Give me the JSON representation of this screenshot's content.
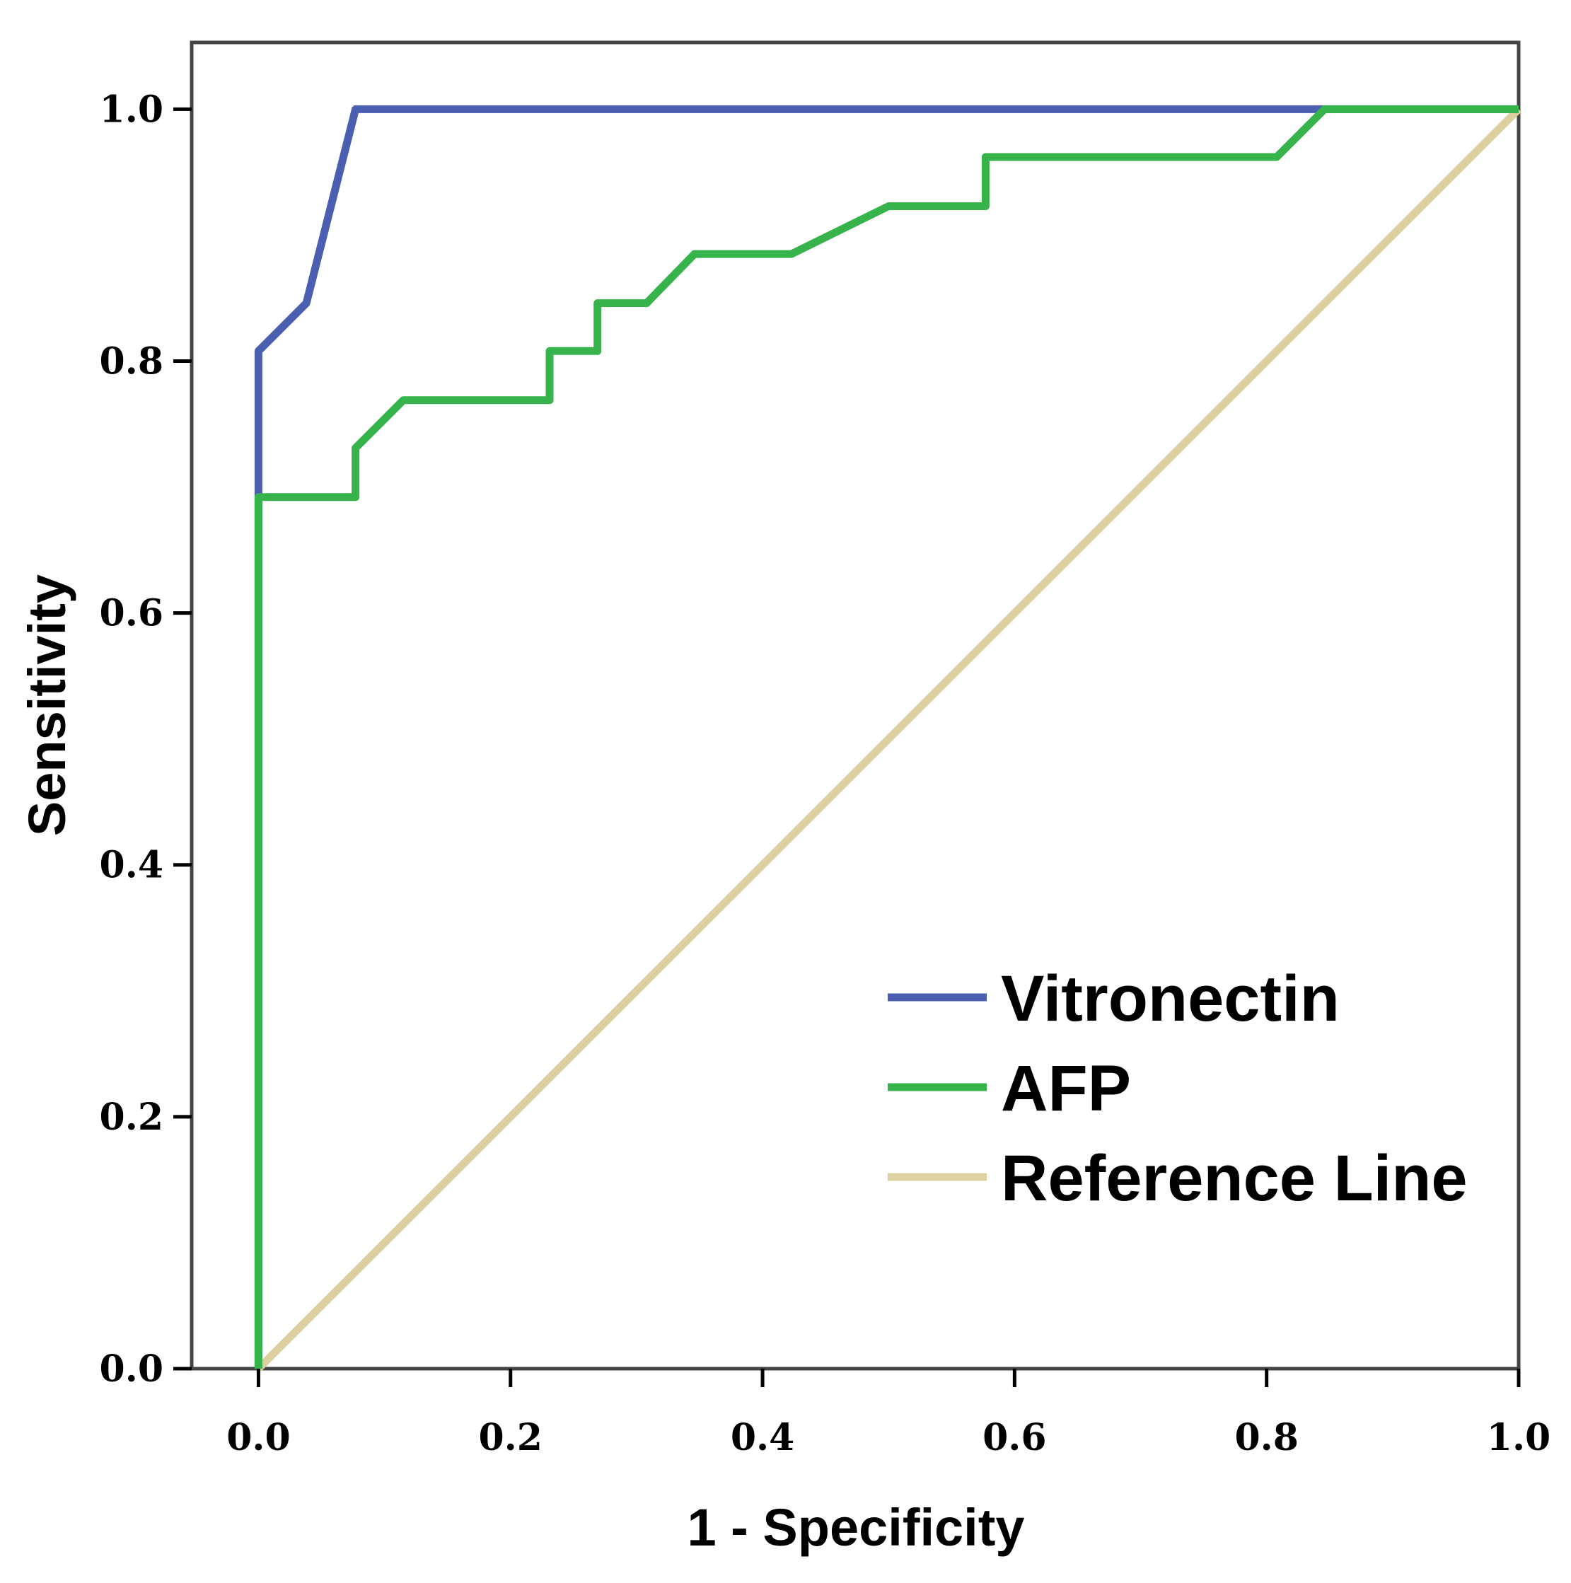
{
  "chart_data": {
    "type": "line",
    "title": "",
    "xlabel": "1 - Specificity",
    "ylabel": "Sensitivity",
    "xlim": [
      -0.053,
      1.0
    ],
    "ylim": [
      0.0,
      1.053
    ],
    "xticks": [
      "0.0",
      "0.2",
      "0.4",
      "0.6",
      "0.8",
      "1.0"
    ],
    "yticks": [
      "0.0",
      "0.2",
      "0.4",
      "0.6",
      "0.8",
      "1.0"
    ],
    "grid": false,
    "legend_position": "bottom-right",
    "series": [
      {
        "name": "Vitronectin",
        "color": "#4a5fb0",
        "points": [
          [
            0.0,
            0.0
          ],
          [
            0.0,
            0.808
          ],
          [
            0.038,
            0.846
          ],
          [
            0.077,
            1.0
          ],
          [
            0.846,
            1.0
          ],
          [
            1.0,
            1.0
          ]
        ]
      },
      {
        "name": "AFP",
        "color": "#36b34a",
        "points": [
          [
            0.0,
            0.0
          ],
          [
            0.0,
            0.692
          ],
          [
            0.077,
            0.692
          ],
          [
            0.077,
            0.731
          ],
          [
            0.115,
            0.769
          ],
          [
            0.231,
            0.769
          ],
          [
            0.231,
            0.808
          ],
          [
            0.269,
            0.808
          ],
          [
            0.269,
            0.846
          ],
          [
            0.308,
            0.846
          ],
          [
            0.346,
            0.885
          ],
          [
            0.423,
            0.885
          ],
          [
            0.5,
            0.923
          ],
          [
            0.577,
            0.923
          ],
          [
            0.577,
            0.962
          ],
          [
            0.808,
            0.962
          ],
          [
            0.846,
            1.0
          ],
          [
            1.0,
            1.0
          ]
        ]
      },
      {
        "name": "Reference Line",
        "color": "#dccfa0",
        "points": [
          [
            0.0,
            0.0
          ],
          [
            1.0,
            1.0
          ]
        ]
      }
    ]
  }
}
